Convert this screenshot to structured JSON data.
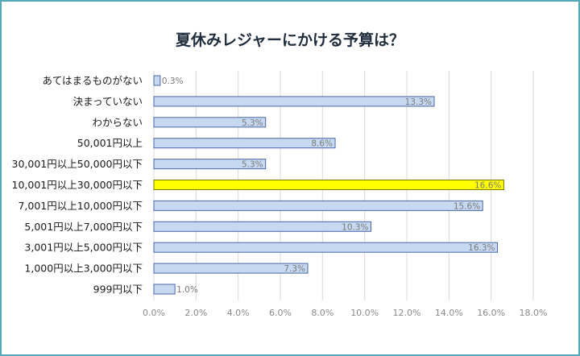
{
  "chart_data": {
    "type": "bar",
    "orientation": "horizontal",
    "title": "夏休みレジャーにかける予算は？",
    "categories": [
      "あてはまるものがない",
      "決まっていない",
      "わからない",
      "50,001円以上",
      "30,001円以上50,000円以下",
      "10,001円以上30,000円以下",
      "7,001円以上10,000円以下",
      "5,001円以上7,000円以下",
      "3,001円以上5,000円以下",
      "1,000円以上3,000円以下",
      "999円以下"
    ],
    "values": [
      0.3,
      13.3,
      5.3,
      8.6,
      5.3,
      16.6,
      15.6,
      10.3,
      16.3,
      7.3,
      1.0
    ],
    "data_labels": [
      "0.3%",
      "13.3%",
      "5.3%",
      "8.6%",
      "5.3%",
      "16.6%",
      "15.6%",
      "10.3%",
      "16.3%",
      "7.3%",
      "1.0%"
    ],
    "highlight_index": 5,
    "xlim": [
      0,
      18
    ],
    "x_ticks": [
      "0.0%",
      "2.0%",
      "4.0%",
      "6.0%",
      "8.0%",
      "10.0%",
      "12.0%",
      "14.0%",
      "16.0%",
      "18.0%"
    ],
    "grid": true,
    "colors": {
      "bar": "#c6d9f1",
      "bar_stroke": "#4a66a8",
      "highlight": "#ffff00",
      "highlight_stroke": "#7a7a00",
      "frame": "#55a9b8",
      "grid": "#d9d9d9"
    }
  }
}
